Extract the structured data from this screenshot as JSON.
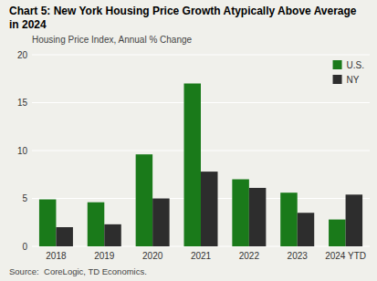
{
  "chart_data": {
    "type": "bar",
    "title": "Chart 5: New York Housing Price Growth Atypically Above Average in 2024",
    "subtitle": "Housing Price Index, Annual % Change",
    "source": "Source:  CoreLogic, TD Economics.",
    "categories": [
      "2018",
      "2019",
      "2020",
      "2021",
      "2022",
      "2023",
      "2024 YTD"
    ],
    "series": [
      {
        "name": "U.S.",
        "color": "#1a7a1a",
        "values": [
          4.9,
          4.6,
          9.6,
          17.0,
          7.0,
          5.6,
          2.8
        ]
      },
      {
        "name": "NY",
        "color": "#2d2d2d",
        "values": [
          2.0,
          2.3,
          5.0,
          7.8,
          6.1,
          3.5,
          5.4
        ]
      }
    ],
    "ylim": [
      0,
      20
    ],
    "yticks": [
      0,
      5,
      10,
      15,
      20
    ],
    "grid": true,
    "legend": "upper right"
  }
}
